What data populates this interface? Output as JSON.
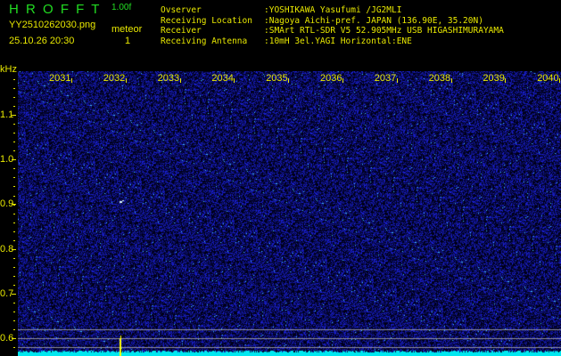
{
  "header": {
    "app_name": "H R O F F T",
    "version": "1.00f",
    "filename": "YY2510262030.png",
    "datetime": "25.10.26 20:30",
    "meteor_label": "meteor",
    "meteor_count": "1",
    "info": [
      {
        "label": "Ovserver",
        "value": ":YOSHIKAWA Yasufumi /JG2MLI"
      },
      {
        "label": "Receiving Location",
        "value": ":Nagoya Aichi-pref. JAPAN (136.90E, 35.20N)"
      },
      {
        "label": "Receiver",
        "value": ":SMArt RTL-SDR V5 52.905MHz USB HIGASHIMURAYAMA"
      },
      {
        "label": "Receiving Antenna",
        "value": ":10mH 3el.YAGI Horizontal:ENE"
      }
    ]
  },
  "spectrogram": {
    "y_unit": "kHz",
    "y_ticks": [
      "1.1",
      "1.0",
      "0.9",
      "0.8",
      "0.7",
      "0.6"
    ],
    "time_ticks": [
      "2031",
      "2032",
      "2033",
      "2034",
      "2035",
      "2036",
      "2037",
      "2038",
      "2039",
      "2040"
    ],
    "colors": {
      "background": "#000033",
      "noise": "#2030ff",
      "floor": "#00e8f0",
      "labels": "#e8e800",
      "meteor": "#ffff00"
    }
  }
}
